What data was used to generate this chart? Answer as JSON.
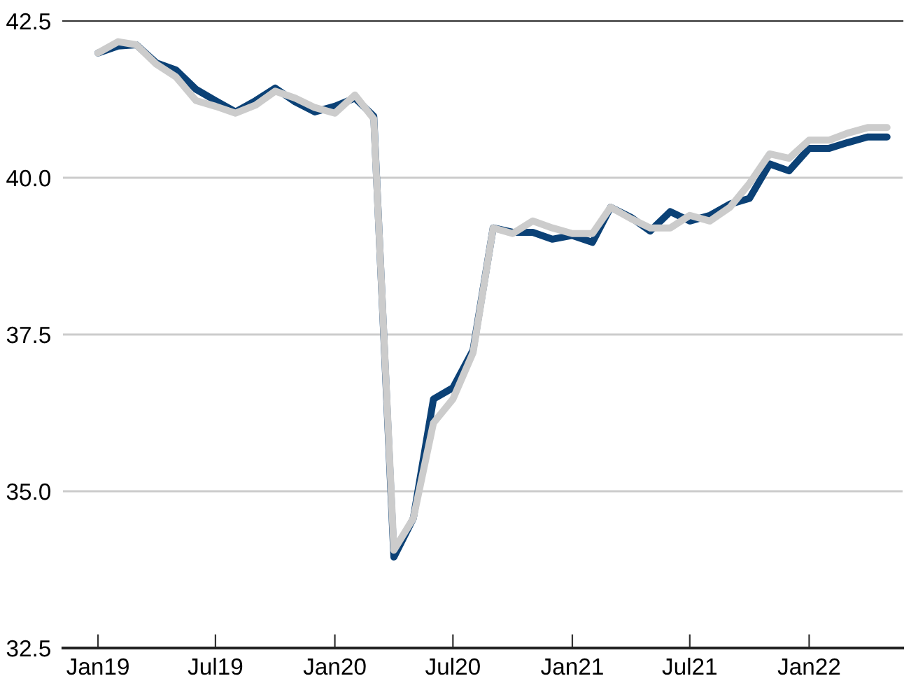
{
  "chart_data": {
    "type": "line",
    "x": [
      "2019-01",
      "2019-02",
      "2019-03",
      "2019-04",
      "2019-05",
      "2019-06",
      "2019-07",
      "2019-08",
      "2019-09",
      "2019-10",
      "2019-11",
      "2019-12",
      "2020-01",
      "2020-02",
      "2020-03",
      "2020-04",
      "2020-05",
      "2020-06",
      "2020-07",
      "2020-08",
      "2020-09",
      "2020-10",
      "2020-11",
      "2020-12",
      "2021-01",
      "2021-02",
      "2021-03",
      "2021-04",
      "2021-05",
      "2021-06",
      "2021-07",
      "2021-08",
      "2021-09",
      "2021-10",
      "2021-11",
      "2021-12",
      "2022-01",
      "2022-02",
      "2022-03",
      "2022-04",
      "2022-05"
    ],
    "series": [
      {
        "color": "#0b4176",
        "values": [
          41.99,
          42.1,
          42.12,
          41.83,
          41.72,
          41.41,
          41.23,
          41.05,
          41.23,
          41.43,
          41.21,
          41.05,
          41.14,
          41.27,
          40.98,
          33.95,
          34.57,
          36.47,
          36.65,
          37.25,
          39.2,
          39.13,
          39.13,
          39.02,
          39.08,
          38.97,
          39.53,
          39.37,
          39.15,
          39.46,
          39.31,
          39.4,
          39.58,
          39.67,
          40.22,
          40.11,
          40.47,
          40.47,
          40.56,
          40.65,
          40.65
        ]
      },
      {
        "color": "#cccccc",
        "values": [
          41.99,
          42.17,
          42.12,
          41.81,
          41.61,
          41.23,
          41.14,
          41.03,
          41.16,
          41.38,
          41.27,
          41.12,
          41.03,
          41.32,
          40.94,
          34.06,
          34.57,
          36.09,
          36.47,
          37.21,
          39.2,
          39.11,
          39.31,
          39.2,
          39.11,
          39.11,
          39.53,
          39.35,
          39.2,
          39.2,
          39.4,
          39.31,
          39.53,
          39.91,
          40.38,
          40.31,
          40.6,
          40.6,
          40.71,
          40.8,
          40.8
        ]
      }
    ],
    "xlim": [
      "2018-11-08",
      "2022-05-25"
    ],
    "xticks": [
      {
        "value": "2019-01",
        "label": "Jan19"
      },
      {
        "value": "2019-07",
        "label": "Jul19"
      },
      {
        "value": "2020-01",
        "label": "Jan20"
      },
      {
        "value": "2020-07",
        "label": "Jul20"
      },
      {
        "value": "2021-01",
        "label": "Jan21"
      },
      {
        "value": "2021-07",
        "label": "Jul21"
      },
      {
        "value": "2022-01",
        "label": "Jan22"
      }
    ],
    "ylim": [
      32.5,
      42.5
    ],
    "yticks": [
      {
        "value": 32.5,
        "label": "32.5"
      },
      {
        "value": 35,
        "label": "35.0"
      },
      {
        "value": 37.5,
        "label": "37.5"
      },
      {
        "value": 40,
        "label": "40.0"
      },
      {
        "value": 42.5,
        "label": "42.5"
      }
    ],
    "grid": "y",
    "marker": "none",
    "line_style": "solid"
  }
}
